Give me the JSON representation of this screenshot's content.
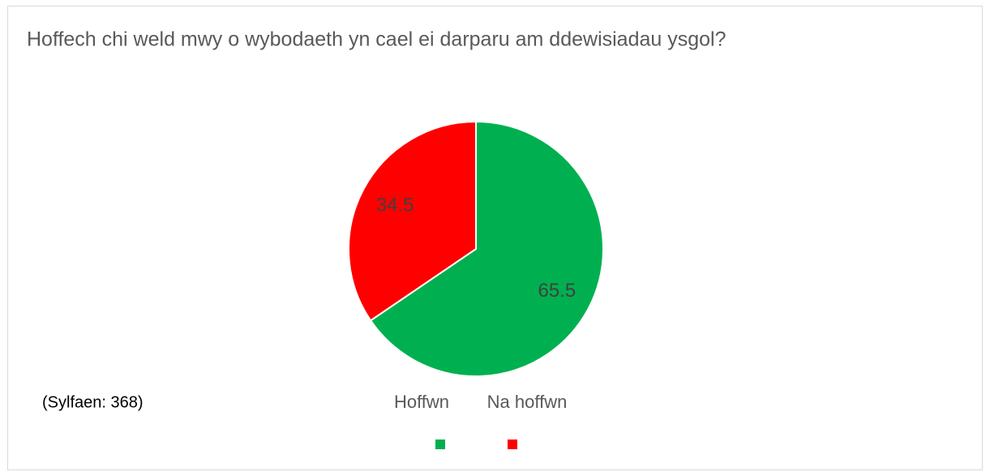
{
  "chart_data": {
    "type": "pie",
    "title": "Hoffech chi weld mwy o wybodaeth yn cael ei darparu am ddewisiadau ysgol?",
    "categories": [
      "Hoffwn",
      "Na hoffwn"
    ],
    "values": [
      65.5,
      34.5
    ],
    "colors": [
      "#00b050",
      "#ff0000"
    ],
    "annotation": "(Sylfaen: 368)"
  }
}
